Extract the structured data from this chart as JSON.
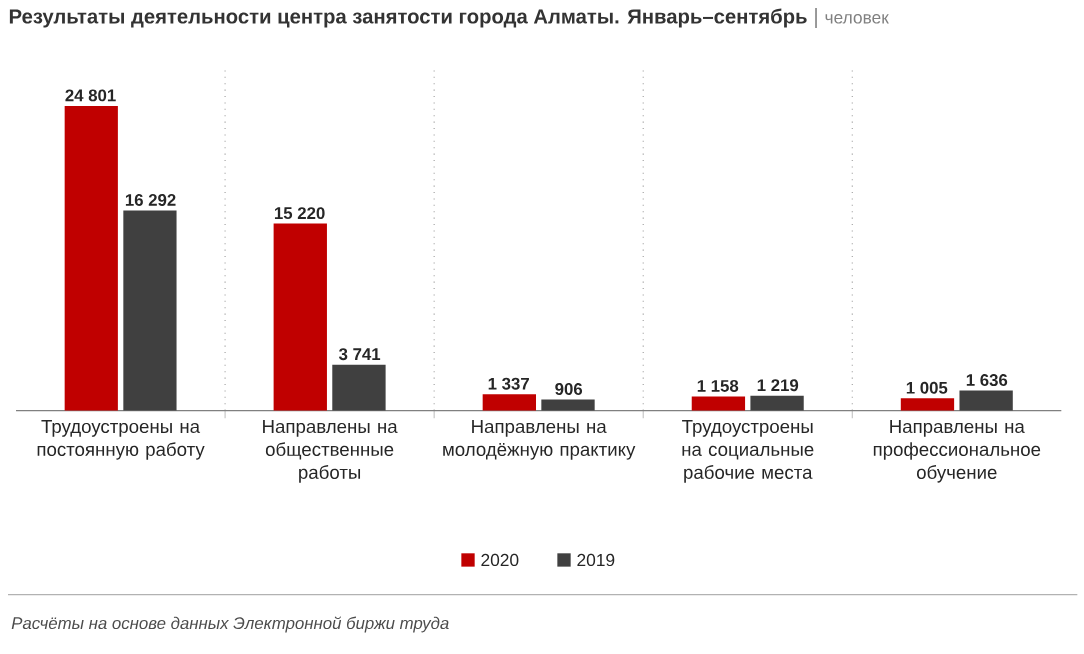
{
  "chart_data": {
    "type": "bar",
    "title": "Результаты деятельности центра занятости города Алматы. Январь–сентябрь",
    "subtitle": "человек",
    "categories": [
      "Трудоустроены на постоянную работу",
      "Направлены на общественные работы",
      "Направлены на молодёжную практику",
      "Трудоустроены на социальные рабочие места",
      "Направлены на профессиональное обучение"
    ],
    "series": [
      {
        "name": "2020",
        "color": "#c00000",
        "values": [
          24801,
          15220,
          1337,
          1158,
          1005
        ],
        "value_labels": [
          "24 801",
          "15 220",
          "1 337",
          "1 158",
          "1 005"
        ]
      },
      {
        "name": "2019",
        "color": "#404040",
        "values": [
          16292,
          3741,
          906,
          1219,
          1636
        ],
        "value_labels": [
          "16 292",
          "3 741",
          "906",
          "1 219",
          "1 636"
        ]
      }
    ],
    "grid": "x",
    "legend": "bottom",
    "annotations": [
      "Расчёты на основе данных Электронной биржи труда"
    ]
  }
}
